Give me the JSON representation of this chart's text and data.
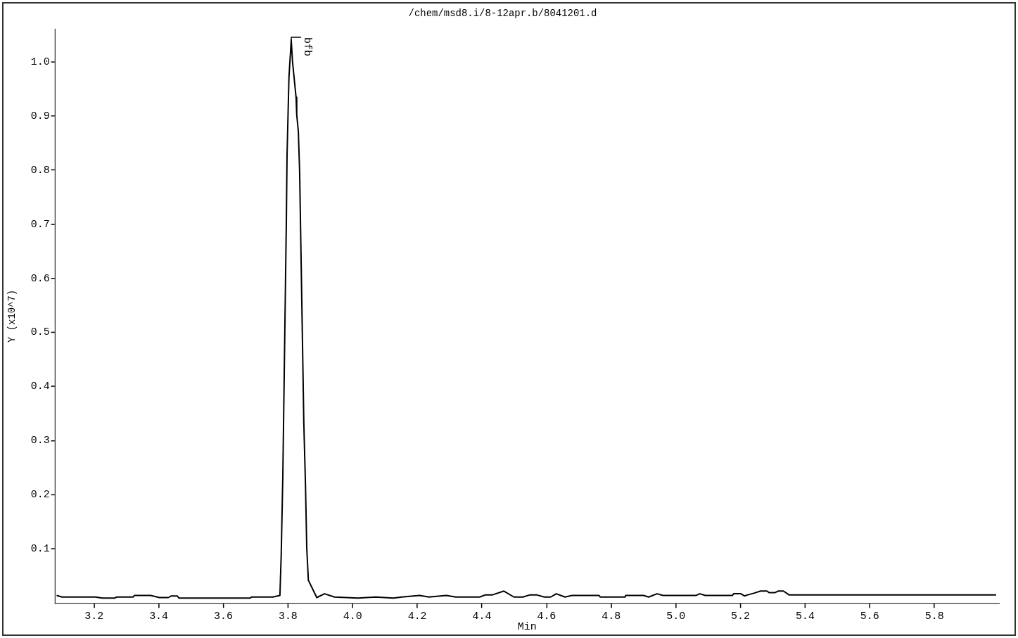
{
  "chart_data": {
    "type": "line",
    "title": "/chem/msd8.i/8-12apr.b/8041201.d",
    "xlabel": "Min",
    "ylabel": "Y (x10^7)",
    "xlim": [
      3.08,
      6.0
    ],
    "xticks": [
      3.2,
      3.4,
      3.6,
      3.8,
      {
        "value": 4,
        "label": "4.0"
      },
      4.2,
      4.4,
      4.6,
      4.8,
      {
        "value": 5,
        "label": "5.0"
      },
      5.2,
      5.4,
      5.6,
      5.8
    ],
    "ylim": [
      0,
      1.06
    ],
    "yticks": [
      0.1,
      0.2,
      0.3,
      0.4,
      0.5,
      0.6,
      0.7,
      0.8,
      0.9,
      {
        "value": 1,
        "label": "1.0"
      }
    ],
    "grid": false,
    "legend": false,
    "marker": "none",
    "line_style": "solid",
    "annotations": [
      {
        "text": "bfb",
        "x": 3.81,
        "y": 1.04
      }
    ],
    "series": [
      {
        "color": "#000000",
        "x": [
          3.084,
          3.101,
          3.204,
          3.226,
          3.264,
          3.27,
          3.321,
          3.325,
          3.375,
          3.402,
          3.43,
          3.439,
          3.457,
          3.463,
          3.683,
          3.687,
          3.753,
          3.775,
          3.779,
          3.784,
          3.795,
          3.797,
          3.803,
          3.81,
          3.814,
          3.819,
          3.825,
          3.827,
          3.832,
          3.836,
          3.849,
          3.854,
          3.858,
          3.863,
          3.889,
          3.913,
          3.944,
          4.016,
          4.071,
          4.126,
          4.152,
          4.207,
          4.236,
          4.29,
          4.319,
          4.393,
          4.411,
          4.433,
          4.468,
          4.499,
          4.527,
          4.549,
          4.569,
          4.593,
          4.613,
          4.63,
          4.657,
          4.679,
          4.762,
          4.766,
          4.843,
          4.845,
          4.9,
          4.916,
          4.942,
          4.96,
          4.981,
          5.063,
          5.074,
          5.091,
          5.175,
          5.179,
          5.201,
          5.212,
          5.223,
          5.241,
          5.262,
          5.282,
          5.289,
          5.306,
          5.317,
          5.333,
          5.35,
          5.991
        ],
        "values": [
          0.014,
          0.011,
          0.011,
          0.009,
          0.009,
          0.011,
          0.011,
          0.014,
          0.014,
          0.01,
          0.01,
          0.013,
          0.013,
          0.009,
          0.009,
          0.011,
          0.011,
          0.014,
          0.089,
          0.235,
          0.712,
          0.826,
          0.972,
          1.04,
          1.0,
          0.97,
          0.934,
          0.902,
          0.871,
          0.797,
          0.331,
          0.22,
          0.102,
          0.042,
          0.01,
          0.017,
          0.011,
          0.009,
          0.011,
          0.009,
          0.011,
          0.014,
          0.011,
          0.014,
          0.011,
          0.011,
          0.015,
          0.015,
          0.022,
          0.011,
          0.011,
          0.015,
          0.015,
          0.011,
          0.011,
          0.017,
          0.011,
          0.014,
          0.014,
          0.011,
          0.011,
          0.014,
          0.014,
          0.011,
          0.017,
          0.014,
          0.014,
          0.014,
          0.017,
          0.014,
          0.014,
          0.017,
          0.017,
          0.013,
          0.015,
          0.018,
          0.022,
          0.022,
          0.019,
          0.019,
          0.022,
          0.022,
          0.015,
          0.015
        ]
      }
    ]
  }
}
